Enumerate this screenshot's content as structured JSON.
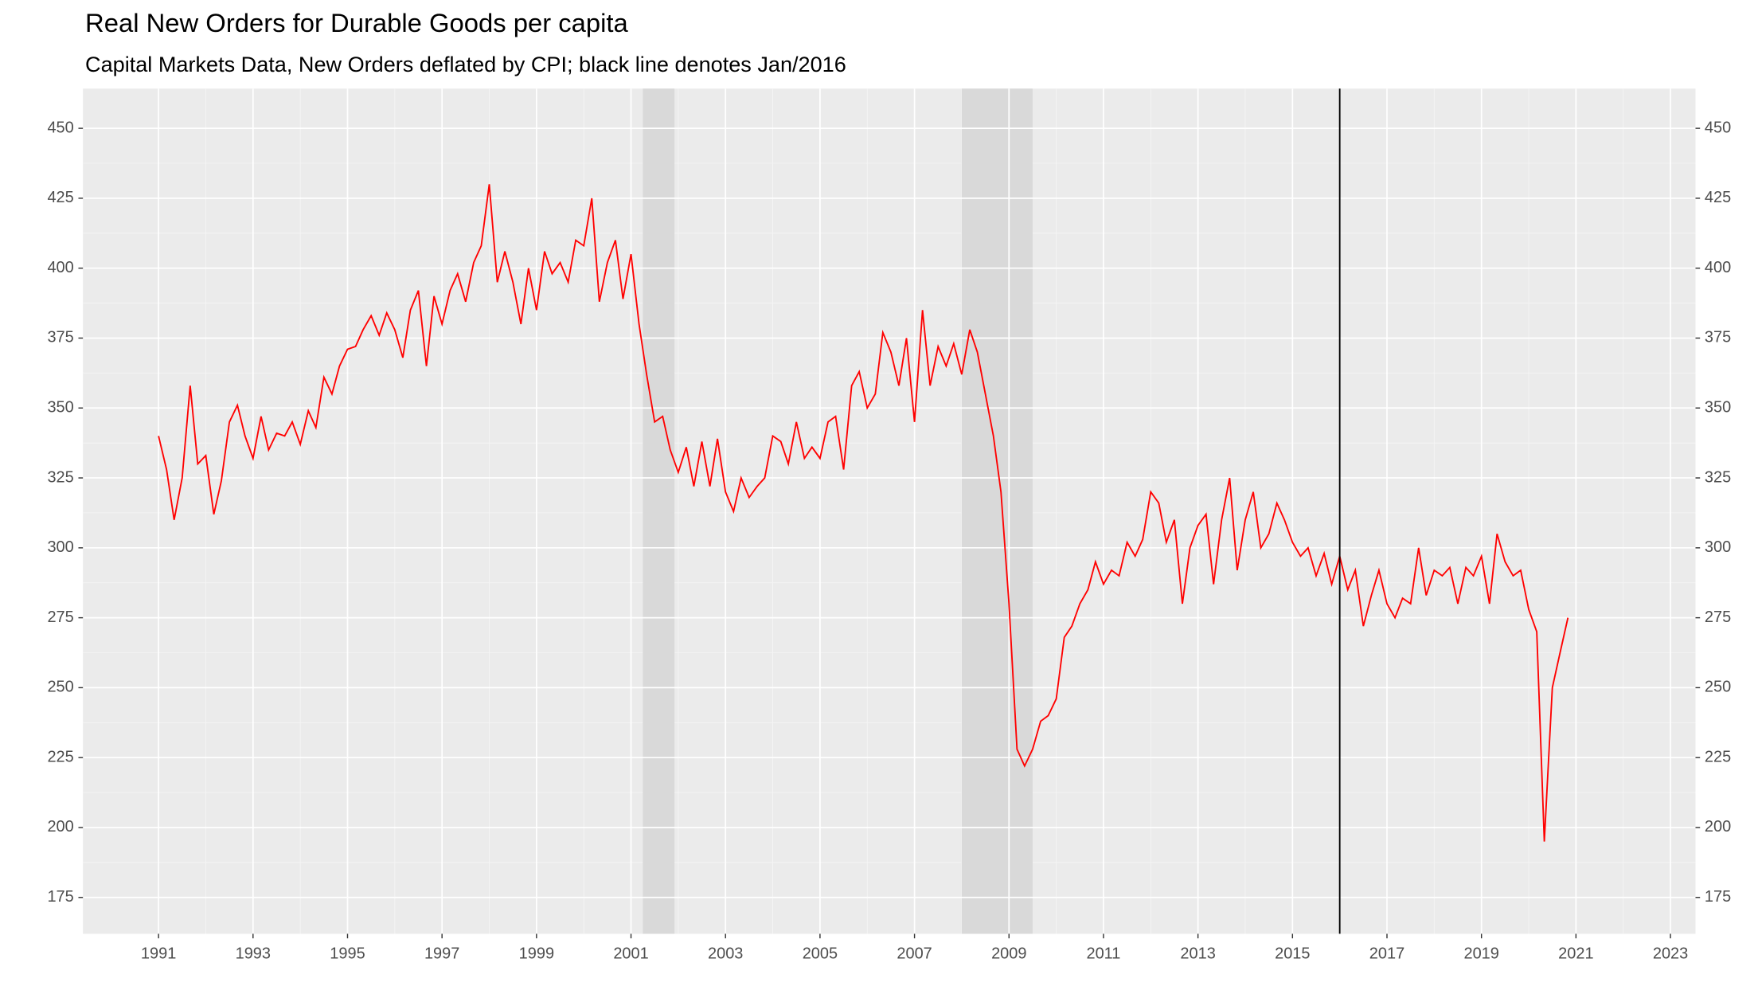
{
  "chart_data": {
    "type": "line",
    "title": "Real New Orders for Durable Goods per capita",
    "subtitle": "Capital Markets Data, New Orders deflated by CPI; black line denotes Jan/2016",
    "color": "#ff0000",
    "x": [
      1991,
      1991.17,
      1991.33,
      1991.5,
      1991.67,
      1991.83,
      1992,
      1992.17,
      1992.33,
      1992.5,
      1992.67,
      1992.83,
      1993,
      1993.17,
      1993.33,
      1993.5,
      1993.67,
      1993.83,
      1994,
      1994.17,
      1994.33,
      1994.5,
      1994.67,
      1994.83,
      1995,
      1995.17,
      1995.33,
      1995.5,
      1995.67,
      1995.83,
      1996,
      1996.17,
      1996.33,
      1996.5,
      1996.67,
      1996.83,
      1997,
      1997.17,
      1997.33,
      1997.5,
      1997.67,
      1997.83,
      1998,
      1998.17,
      1998.33,
      1998.5,
      1998.67,
      1998.83,
      1999,
      1999.17,
      1999.33,
      1999.5,
      1999.67,
      1999.83,
      2000,
      2000.17,
      2000.33,
      2000.5,
      2000.67,
      2000.83,
      2001,
      2001.17,
      2001.33,
      2001.5,
      2001.67,
      2001.83,
      2002,
      2002.17,
      2002.33,
      2002.5,
      2002.67,
      2002.83,
      2003,
      2003.17,
      2003.33,
      2003.5,
      2003.67,
      2003.83,
      2004,
      2004.17,
      2004.33,
      2004.5,
      2004.67,
      2004.83,
      2005,
      2005.17,
      2005.33,
      2005.5,
      2005.67,
      2005.83,
      2006,
      2006.17,
      2006.33,
      2006.5,
      2006.67,
      2006.83,
      2007,
      2007.17,
      2007.33,
      2007.5,
      2007.67,
      2007.83,
      2008,
      2008.17,
      2008.33,
      2008.5,
      2008.67,
      2008.83,
      2009,
      2009.17,
      2009.33,
      2009.5,
      2009.67,
      2009.83,
      2010,
      2010.17,
      2010.33,
      2010.5,
      2010.67,
      2010.83,
      2011,
      2011.17,
      2011.33,
      2011.5,
      2011.67,
      2011.83,
      2012,
      2012.17,
      2012.33,
      2012.5,
      2012.67,
      2012.83,
      2013,
      2013.17,
      2013.33,
      2013.5,
      2013.67,
      2013.83,
      2014,
      2014.17,
      2014.33,
      2014.5,
      2014.67,
      2014.83,
      2015,
      2015.17,
      2015.33,
      2015.5,
      2015.67,
      2015.83,
      2016,
      2016.17,
      2016.33,
      2016.5,
      2016.67,
      2016.83,
      2017,
      2017.17,
      2017.33,
      2017.5,
      2017.67,
      2017.83,
      2018,
      2018.17,
      2018.33,
      2018.5,
      2018.67,
      2018.83,
      2019,
      2019.17,
      2019.33,
      2019.5,
      2019.67,
      2019.83,
      2020,
      2020.17,
      2020.33,
      2020.5,
      2020.67,
      2020.83
    ],
    "values": [
      340,
      328,
      310,
      325,
      358,
      330,
      333,
      312,
      324,
      345,
      351,
      340,
      332,
      347,
      335,
      341,
      340,
      345,
      337,
      349,
      343,
      361,
      355,
      365,
      371,
      372,
      378,
      383,
      376,
      384,
      378,
      368,
      385,
      392,
      365,
      390,
      380,
      392,
      398,
      388,
      402,
      408,
      430,
      395,
      406,
      395,
      380,
      400,
      385,
      406,
      398,
      402,
      395,
      410,
      408,
      425,
      388,
      402,
      410,
      389,
      405,
      380,
      362,
      345,
      347,
      335,
      327,
      336,
      322,
      338,
      322,
      339,
      320,
      313,
      325,
      318,
      322,
      325,
      340,
      338,
      330,
      345,
      332,
      336,
      332,
      345,
      347,
      328,
      358,
      363,
      350,
      355,
      377,
      370,
      358,
      375,
      345,
      385,
      358,
      372,
      365,
      373,
      362,
      378,
      370,
      355,
      340,
      320,
      280,
      228,
      222,
      228,
      238,
      240,
      246,
      268,
      272,
      280,
      285,
      295,
      287,
      292,
      290,
      302,
      297,
      303,
      320,
      316,
      302,
      310,
      280,
      300,
      308,
      312,
      287,
      310,
      325,
      292,
      310,
      320,
      300,
      305,
      316,
      310,
      302,
      297,
      300,
      290,
      298,
      287,
      297,
      285,
      292,
      272,
      283,
      292,
      280,
      275,
      282,
      280,
      300,
      283,
      292,
      290,
      293,
      280,
      293,
      290,
      297,
      280,
      305,
      295,
      290,
      292,
      278,
      270,
      195,
      250,
      263,
      275
    ],
    "recessions": [
      [
        2001.25,
        2001.92
      ],
      [
        2008.0,
        2009.5
      ]
    ],
    "vline": 2016.0,
    "xlim": [
      1989.4,
      2023.53
    ],
    "xticks": [
      1991,
      1993,
      1995,
      1997,
      1999,
      2001,
      2003,
      2005,
      2007,
      2009,
      2011,
      2013,
      2015,
      2017,
      2019,
      2021,
      2023
    ],
    "ylim": [
      162,
      464.2
    ],
    "yticks": [
      175,
      200,
      225,
      250,
      275,
      300,
      325,
      350,
      375,
      400,
      425,
      450
    ],
    "grid": true
  }
}
